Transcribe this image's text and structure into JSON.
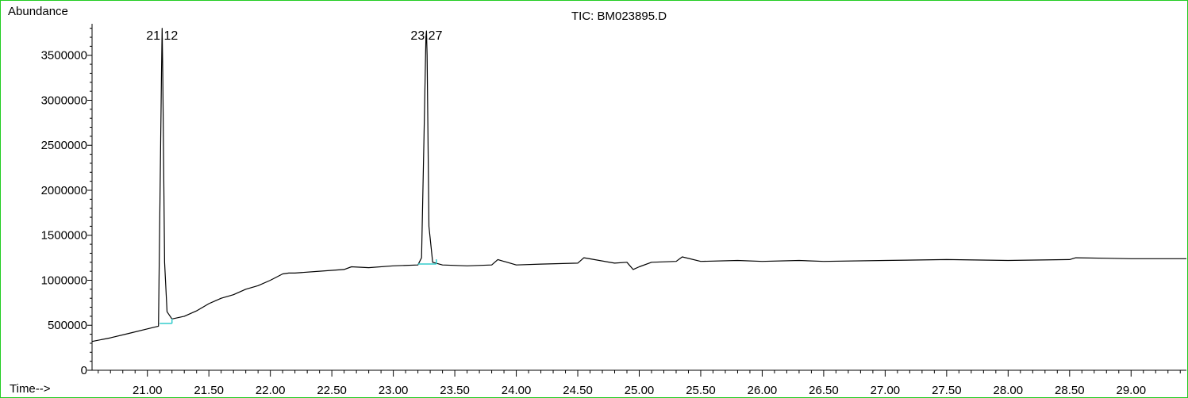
{
  "colors": {
    "frame": "#22cc22",
    "trace": "#000000",
    "baseline": "#33cccc",
    "axis": "#000000"
  },
  "chart_data": {
    "type": "line",
    "title": "TIC: BM023895.D",
    "ylabel": "Abundance",
    "xlabel": "Time-->",
    "xlim": [
      20.55,
      29.45
    ],
    "ylim": [
      0,
      3850000
    ],
    "x_ticks": [
      21.0,
      21.5,
      22.0,
      22.5,
      23.0,
      23.5,
      24.0,
      24.5,
      25.0,
      25.5,
      26.0,
      26.5,
      27.0,
      27.5,
      28.0,
      28.5,
      29.0
    ],
    "x_tick_labels": [
      "21.00",
      "21.50",
      "22.00",
      "22.50",
      "23.00",
      "23.50",
      "24.00",
      "24.50",
      "25.00",
      "25.50",
      "26.00",
      "26.50",
      "27.00",
      "27.50",
      "28.00",
      "28.50",
      "29.00"
    ],
    "y_ticks": [
      0,
      500000,
      1000000,
      1500000,
      2000000,
      2500000,
      3000000,
      3500000
    ],
    "y_tick_labels": [
      "0",
      "500000",
      "1000000",
      "1500000",
      "2000000",
      "2500000",
      "3000000",
      "3500000"
    ],
    "grid": false,
    "peaks": [
      {
        "label": "21.12",
        "rt": 21.12,
        "apex": 3800000,
        "baseline": [
          [
            21.1,
            520000
          ],
          [
            21.2,
            520000
          ]
        ]
      },
      {
        "label": "23.27",
        "rt": 23.27,
        "apex": 3770000,
        "baseline": [
          [
            23.2,
            1180000
          ],
          [
            23.35,
            1180000
          ]
        ]
      }
    ],
    "series": [
      {
        "x": [
          20.55,
          20.7,
          20.85,
          21.0,
          21.09,
          21.1,
          21.115,
          21.12,
          21.125,
          21.14,
          21.16,
          21.2,
          21.3,
          21.4,
          21.5,
          21.6,
          21.7,
          21.8,
          21.9,
          22.0,
          22.1,
          22.15,
          22.2,
          22.4,
          22.6,
          22.66,
          22.8,
          23.0,
          23.2,
          23.23,
          23.25,
          23.265,
          23.27,
          23.275,
          23.29,
          23.32,
          23.4,
          23.6,
          23.8,
          23.85,
          24.0,
          24.2,
          24.5,
          24.55,
          24.8,
          24.9,
          24.95,
          25.0,
          25.1,
          25.3,
          25.35,
          25.5,
          25.8,
          26.0,
          26.3,
          26.5,
          27.0,
          27.5,
          28.0,
          28.5,
          28.55,
          29.0,
          29.45
        ],
        "y": [
          320000,
          360000,
          410000,
          460000,
          490000,
          1600000,
          3300000,
          3800000,
          3300000,
          1200000,
          650000,
          570000,
          600000,
          660000,
          740000,
          800000,
          840000,
          900000,
          940000,
          1000000,
          1070000,
          1080000,
          1080000,
          1100000,
          1120000,
          1150000,
          1140000,
          1160000,
          1170000,
          1250000,
          2600000,
          3700000,
          3770000,
          3500000,
          1600000,
          1200000,
          1170000,
          1160000,
          1170000,
          1230000,
          1170000,
          1180000,
          1190000,
          1250000,
          1190000,
          1200000,
          1120000,
          1150000,
          1200000,
          1210000,
          1260000,
          1210000,
          1220000,
          1210000,
          1220000,
          1210000,
          1220000,
          1230000,
          1220000,
          1230000,
          1250000,
          1240000,
          1240000
        ]
      }
    ]
  }
}
